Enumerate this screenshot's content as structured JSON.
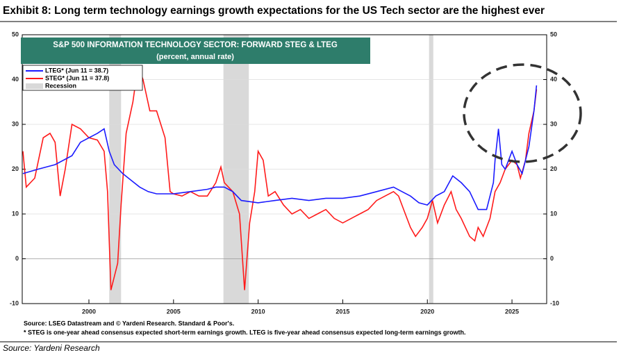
{
  "header": {
    "title": "Exhibit 8: Long term technology earnings growth expectations for the US Tech sector are the highest ever"
  },
  "chart_data": {
    "type": "line",
    "title": "S&P 500 INFORMATION TECHNOLOGY SECTOR: FORWARD STEG & LTEG",
    "subtitle": "(percent, annual rate)",
    "xlim": [
      1996.06,
      2027.05
    ],
    "xticks": [
      2000,
      2005,
      2010,
      2015,
      2020,
      2025
    ],
    "ylim": [
      -10,
      50
    ],
    "yticks": [
      -10,
      0,
      10,
      20,
      30,
      40,
      50
    ],
    "y2lim": [
      -10,
      50
    ],
    "y2ticks": [
      -10,
      0,
      10,
      20,
      30,
      40,
      50
    ],
    "grid": true,
    "legend": "upper left",
    "recession": {
      "name": "Recession",
      "color": "#d9d9d9",
      "spans": [
        [
          2001.2,
          2001.9
        ],
        [
          2007.95,
          2009.45
        ],
        [
          2020.1,
          2020.35
        ]
      ]
    },
    "series": [
      {
        "name": "LTEG* (Jun 11 = 38.7)",
        "color": "#1a1aff",
        "x": [
          1996.1,
          1997,
          1998,
          1999,
          1999.5,
          2000,
          2000.5,
          2000.9,
          2001.2,
          2001.5,
          2002,
          2002.5,
          2003,
          2003.5,
          2004,
          2005,
          2006,
          2007,
          2007.5,
          2008,
          2008.5,
          2009,
          2010,
          2011,
          2012,
          2013,
          2014,
          2015,
          2016,
          2017,
          2018,
          2018.5,
          2019,
          2019.5,
          2020,
          2020.5,
          2021,
          2021.5,
          2022,
          2022.5,
          2023,
          2023.5,
          2023.9,
          2024,
          2024.2,
          2024.4,
          2024.6,
          2025,
          2025.3,
          2025.6,
          2026,
          2026.3,
          2026.45
        ],
        "values": [
          19,
          20,
          21,
          23,
          26,
          27,
          28,
          29,
          24,
          21,
          19,
          17.5,
          16,
          15,
          14.5,
          14.5,
          15,
          15.5,
          16,
          16,
          15,
          13,
          12.5,
          13,
          13.5,
          13,
          13.5,
          13.5,
          14,
          15,
          16,
          15,
          14,
          12.5,
          12,
          14,
          15,
          18.5,
          17,
          15,
          11,
          11,
          17,
          22,
          29,
          21,
          20,
          24,
          21,
          19,
          25,
          33,
          38.7
        ]
      },
      {
        "name": "STEG* (Jun 11 = 37.8)",
        "color": "#ff1a1a",
        "x": [
          1996.1,
          1996.3,
          1996.8,
          1997.3,
          1997.7,
          1998,
          1998.3,
          1998.6,
          1999,
          1999.5,
          2000,
          2000.5,
          2000.9,
          2001.1,
          2001.3,
          2001.7,
          2001.9,
          2002.2,
          2002.6,
          2002.9,
          2003.2,
          2003.6,
          2004,
          2004.5,
          2004.8,
          2005,
          2005.5,
          2006,
          2006.5,
          2007,
          2007.5,
          2007.8,
          2008,
          2008.5,
          2008.9,
          2009.2,
          2009.5,
          2009.8,
          2010,
          2010.3,
          2010.6,
          2011,
          2011.5,
          2012,
          2012.5,
          2013,
          2013.5,
          2014,
          2014.5,
          2015,
          2015.5,
          2016,
          2016.5,
          2017,
          2017.5,
          2018,
          2018.3,
          2018.6,
          2019,
          2019.3,
          2019.7,
          2020,
          2020.3,
          2020.6,
          2021,
          2021.4,
          2021.7,
          2022,
          2022.5,
          2022.8,
          2023,
          2023.3,
          2023.7,
          2024,
          2024.3,
          2024.6,
          2025,
          2025.3,
          2025.5,
          2025.8,
          2026,
          2026.3,
          2026.45
        ],
        "values": [
          24,
          16,
          18,
          27,
          28,
          26,
          14,
          20,
          30,
          29,
          27,
          26.5,
          24,
          15,
          -7,
          -1,
          12,
          28,
          35,
          43,
          40,
          33,
          33,
          27,
          15,
          14.5,
          14,
          15,
          14,
          14,
          17,
          20.5,
          17,
          15,
          10,
          -7,
          8,
          15,
          24,
          22,
          14,
          15,
          12,
          10,
          11,
          9,
          10,
          11,
          9,
          8,
          9,
          10,
          11,
          13,
          14,
          15,
          14,
          11,
          7,
          5,
          7,
          9,
          13,
          8,
          12,
          15,
          11,
          9,
          5,
          4,
          7,
          5,
          9,
          15,
          17,
          20,
          22,
          21,
          18,
          22,
          28,
          33,
          37.8
        ]
      }
    ],
    "notes": [
      "Source: LSEG Datastream and © Yardeni Research. Standard & Poor's.",
      "* STEG is one-year ahead consensus expected short-term earnings growth. LTEG is five-year ahead consensus expected long-term earnings growth."
    ]
  },
  "footer": {
    "source": "Source: Yardeni Research"
  }
}
